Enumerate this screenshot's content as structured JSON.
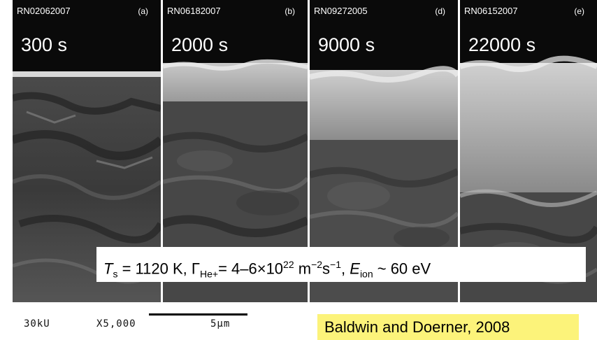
{
  "panels": [
    {
      "id": "RN02062007",
      "label": "(a)",
      "time": "300 s"
    },
    {
      "id": "RN06182007",
      "label": "(b)",
      "time": "2000 s"
    },
    {
      "id": "RN09272005",
      "label": "(d)",
      "time": "9000 s"
    },
    {
      "id": "RN06152007",
      "label": "(e)",
      "time": "22000 s"
    }
  ],
  "caption": {
    "ts_sym": "T",
    "ts_sub": "s",
    "ts_val": " = 1120 K, ",
    "gamma_sym": "Γ",
    "gamma_sub": "He+",
    "gamma_val": "= 4–6×10",
    "gamma_exp": "22",
    "m_unit": " m",
    "m_exp": "−2",
    "s_unit": "s",
    "s_exp": "−1",
    "sep": ", ",
    "e_sym": "E",
    "e_sub": "ion",
    "e_val": " ~ 60 eV"
  },
  "micrometer": {
    "voltage": "30kU",
    "magnification": "X5,000",
    "scale": "5µm"
  },
  "credit": "Baldwin and Doerner, 2008"
}
